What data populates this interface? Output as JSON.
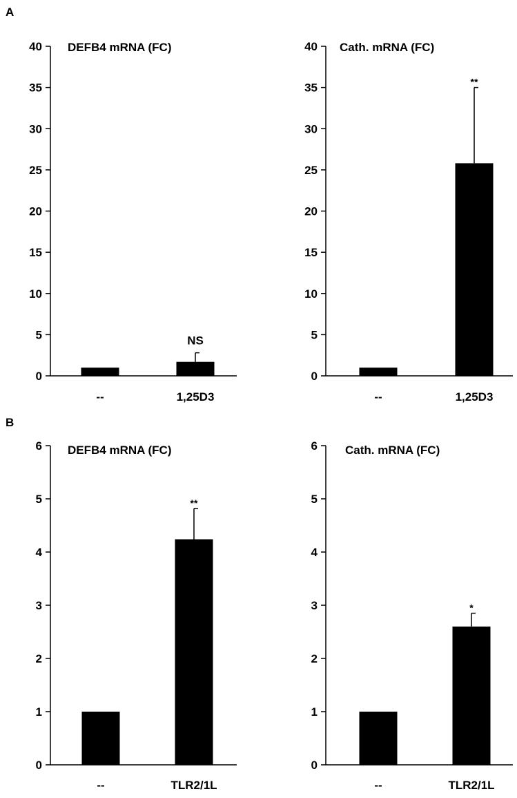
{
  "panels": [
    {
      "label": "A"
    },
    {
      "label": "B"
    }
  ],
  "chart_data": [
    {
      "panel": "A",
      "type": "bar",
      "title": "DEFB4 mRNA (FC)",
      "categories": [
        "--",
        "1,25D3"
      ],
      "values": [
        1.0,
        1.7
      ],
      "error": [
        0,
        1.1
      ],
      "annotations": [
        "",
        "NS"
      ],
      "ylim": [
        0,
        40
      ],
      "yticks": [
        0,
        5,
        10,
        15,
        20,
        25,
        30,
        35,
        40
      ],
      "xlabel": "",
      "ylabel": ""
    },
    {
      "panel": "A",
      "type": "bar",
      "title": "Cath. mRNA (FC)",
      "categories": [
        "--",
        "1,25D3"
      ],
      "values": [
        1.0,
        25.8
      ],
      "error": [
        0,
        9.2
      ],
      "annotations": [
        "",
        "**"
      ],
      "ylim": [
        0,
        40
      ],
      "yticks": [
        0,
        5,
        10,
        15,
        20,
        25,
        30,
        35,
        40
      ],
      "xlabel": "",
      "ylabel": ""
    },
    {
      "panel": "B",
      "type": "bar",
      "title": "DEFB4 mRNA (FC)",
      "categories": [
        "--",
        "TLR2/1L"
      ],
      "values": [
        1.0,
        4.24
      ],
      "error": [
        0,
        0.58
      ],
      "annotations": [
        "",
        "**"
      ],
      "ylim": [
        0,
        6
      ],
      "yticks": [
        0,
        1,
        2,
        3,
        4,
        5,
        6
      ],
      "xlabel": "",
      "ylabel": ""
    },
    {
      "panel": "B",
      "type": "bar",
      "title": "Cath. mRNA (FC)",
      "categories": [
        "--",
        "TLR2/1L"
      ],
      "values": [
        1.0,
        2.6
      ],
      "error": [
        0,
        0.25
      ],
      "annotations": [
        "",
        "*"
      ],
      "ylim": [
        0,
        6
      ],
      "yticks": [
        0,
        1,
        2,
        3,
        4,
        5,
        6
      ],
      "xlabel": "",
      "ylabel": ""
    }
  ]
}
